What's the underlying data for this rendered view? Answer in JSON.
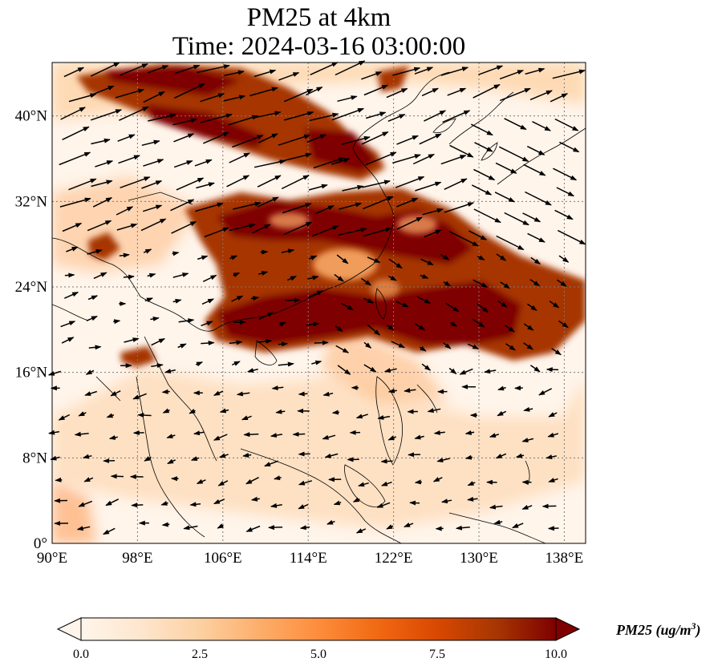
{
  "title": {
    "line1": "PM25 at 4km",
    "line2": "Time: 2024-03-16 03:00:00"
  },
  "axes": {
    "x_ticks": [
      "90°E",
      "98°E",
      "106°E",
      "114°E",
      "122°E",
      "130°E",
      "138°E"
    ],
    "y_ticks": [
      "0°",
      "8°N",
      "16°N",
      "24°N",
      "32°N",
      "40°N"
    ],
    "lon_range": [
      90,
      140
    ],
    "lat_range": [
      0,
      45
    ],
    "gridlines": "dotted"
  },
  "colorbar": {
    "ticks": [
      "0.0",
      "2.5",
      "5.0",
      "7.5",
      "10.0"
    ],
    "range": [
      0,
      10
    ],
    "extend": "both",
    "label": "PM25 (ug/m",
    "label_sup": "3",
    "label_end": ")",
    "colormap": [
      "#fff5eb",
      "#fee6ce",
      "#fdd0a2",
      "#fdae6b",
      "#fd8d3c",
      "#f16913",
      "#d94801",
      "#a63603",
      "#7f0000"
    ]
  },
  "plume_color": "#7f0000",
  "land_outline_color": "#000000",
  "wind_arrow_color": "#000000"
}
